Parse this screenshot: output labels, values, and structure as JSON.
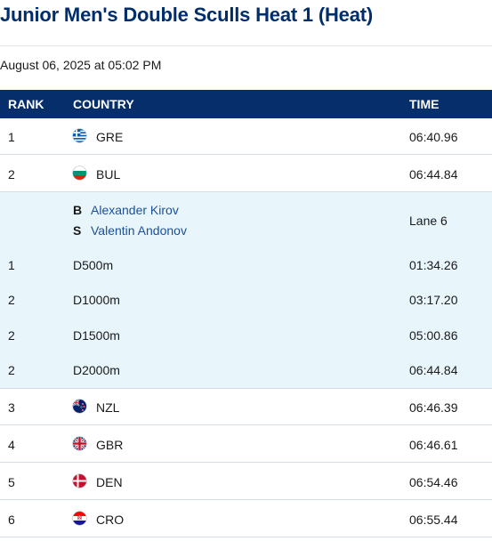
{
  "page": {
    "title": "Junior Men's Double Sculls Heat 1 (Heat)",
    "date": "August 06, 2025 at 05:02 PM"
  },
  "table": {
    "headers": {
      "rank": "RANK",
      "country": "COUNTRY",
      "time": "TIME"
    },
    "rows": [
      {
        "rank": "1",
        "country": "GRE",
        "time": "06:40.96",
        "flag": "greece-flag-icon"
      },
      {
        "rank": "2",
        "country": "BUL",
        "time": "06:44.84",
        "flag": "bulgaria-flag-icon"
      },
      {
        "rank": "3",
        "country": "NZL",
        "time": "06:46.39",
        "flag": "new-zealand-flag-icon"
      },
      {
        "rank": "4",
        "country": "GBR",
        "time": "06:46.61",
        "flag": "great-britain-flag-icon"
      },
      {
        "rank": "5",
        "country": "DEN",
        "time": "06:54.46",
        "flag": "denmark-flag-icon"
      },
      {
        "rank": "6",
        "country": "CRO",
        "time": "06:55.44",
        "flag": "croatia-flag-icon"
      }
    ],
    "expanded": {
      "crew": [
        {
          "position": "B",
          "name": "Alexander Kirov"
        },
        {
          "position": "S",
          "name": "Valentin Andonov"
        }
      ],
      "lane": "Lane 6",
      "splits": [
        {
          "rank": "1",
          "distance": "D500m",
          "time": "01:34.26"
        },
        {
          "rank": "2",
          "distance": "D1000m",
          "time": "03:17.20"
        },
        {
          "rank": "2",
          "distance": "D1500m",
          "time": "05:00.86"
        },
        {
          "rank": "2",
          "distance": "D2000m",
          "time": "06:44.84"
        }
      ]
    }
  },
  "colors": {
    "title": "#002e6d",
    "header_bg": "#052e6b",
    "expanded_bg": "#e8f6fc",
    "crew_name": "#1c4f99"
  }
}
